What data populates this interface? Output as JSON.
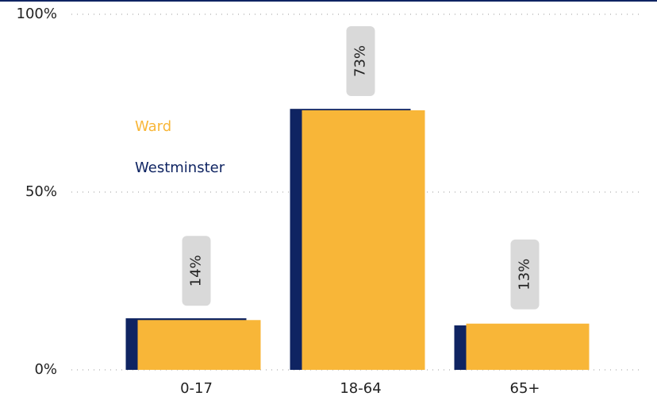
{
  "chart_data": {
    "type": "bar",
    "categories": [
      "0-17",
      "18-64",
      "65+"
    ],
    "series": [
      {
        "name": "Westminster",
        "color": "#0f2462",
        "values": [
          14.5,
          73.4,
          12.5
        ]
      },
      {
        "name": "Ward",
        "color": "#f8b638",
        "values": [
          14,
          73,
          13
        ],
        "value_labels": [
          "14%",
          "73%",
          "13%"
        ]
      }
    ],
    "ylim": [
      0,
      100
    ],
    "yticks": [
      {
        "value": 0,
        "label": "0%"
      },
      {
        "value": 50,
        "label": "50%"
      },
      {
        "value": 100,
        "label": "100%"
      }
    ],
    "grid": true
  }
}
